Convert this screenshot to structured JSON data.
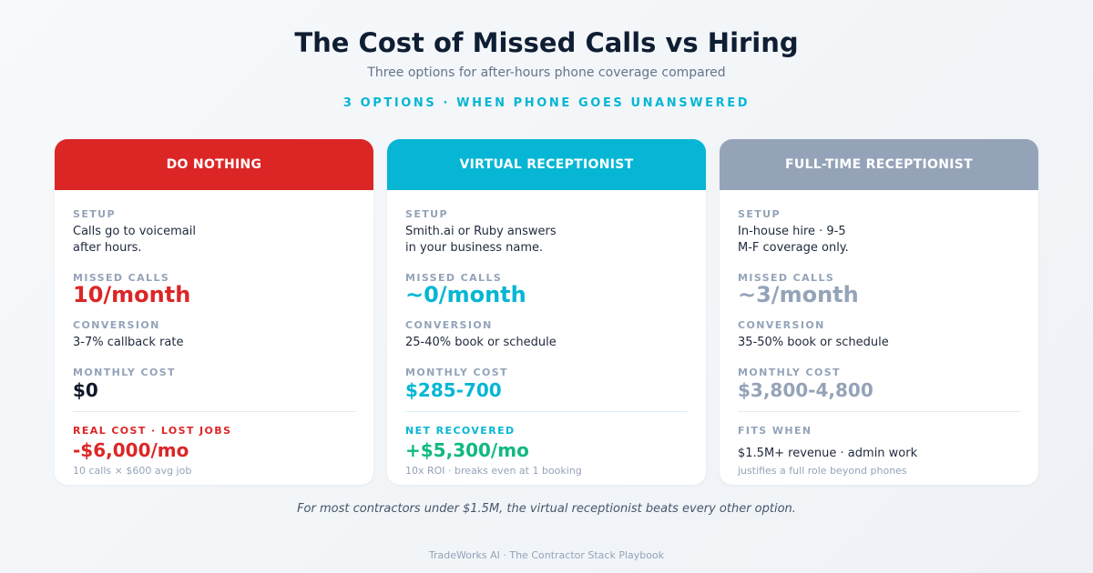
{
  "header": {
    "title": "The Cost of Missed Calls vs Hiring",
    "subtitle": "Three options for after-hours phone coverage compared",
    "eyebrow": "3 OPTIONS · WHEN PHONE GOES UNANSWERED"
  },
  "labels": {
    "setup": "SETUP",
    "missed_calls": "MISSED CALLS",
    "conversion": "CONVERSION",
    "monthly_cost": "MONTHLY COST"
  },
  "cards": [
    {
      "title": "DO NOTHING",
      "color": "#dc2626",
      "setup_line1": "Calls go to voicemail",
      "setup_line2": "after hours.",
      "missed_calls": "10/month",
      "conversion": "3-7% callback rate",
      "monthly_cost": "$0",
      "bottom_label": "REAL COST · LOST JOBS",
      "bottom_value": "-$6,000/mo",
      "bottom_note": "10 calls × $600 avg job"
    },
    {
      "title": "VIRTUAL RECEPTIONIST",
      "color": "#06b6d4",
      "setup_line1": "Smith.ai or Ruby answers",
      "setup_line2": "in your business name.",
      "missed_calls": "~0/month",
      "conversion": "25-40% book or schedule",
      "monthly_cost": "$285-700",
      "bottom_label": "NET RECOVERED",
      "bottom_value": "+$5,300/mo",
      "bottom_note": "10x ROI · breaks even at 1 booking"
    },
    {
      "title": "FULL-TIME RECEPTIONIST",
      "color": "#94a3b8",
      "setup_line1": "In-house hire · 9-5",
      "setup_line2": "M-F coverage only.",
      "missed_calls": "~3/month",
      "conversion": "35-50% book or schedule",
      "monthly_cost": "$3,800-4,800",
      "bottom_label": "FITS WHEN",
      "bottom_value": "$1.5M+ revenue · admin work",
      "bottom_note": "justifies a full role beyond phones"
    }
  ],
  "colors": {
    "red": "#dc2626",
    "cyan": "#06b6d4",
    "slate": "#94a3b8",
    "green": "#10b981",
    "dark": "#0f172a"
  },
  "footnote": "For most contractors under $1.5M, the virtual receptionist beats every other option.",
  "footer": "TradeWorks AI · The Contractor Stack Playbook"
}
